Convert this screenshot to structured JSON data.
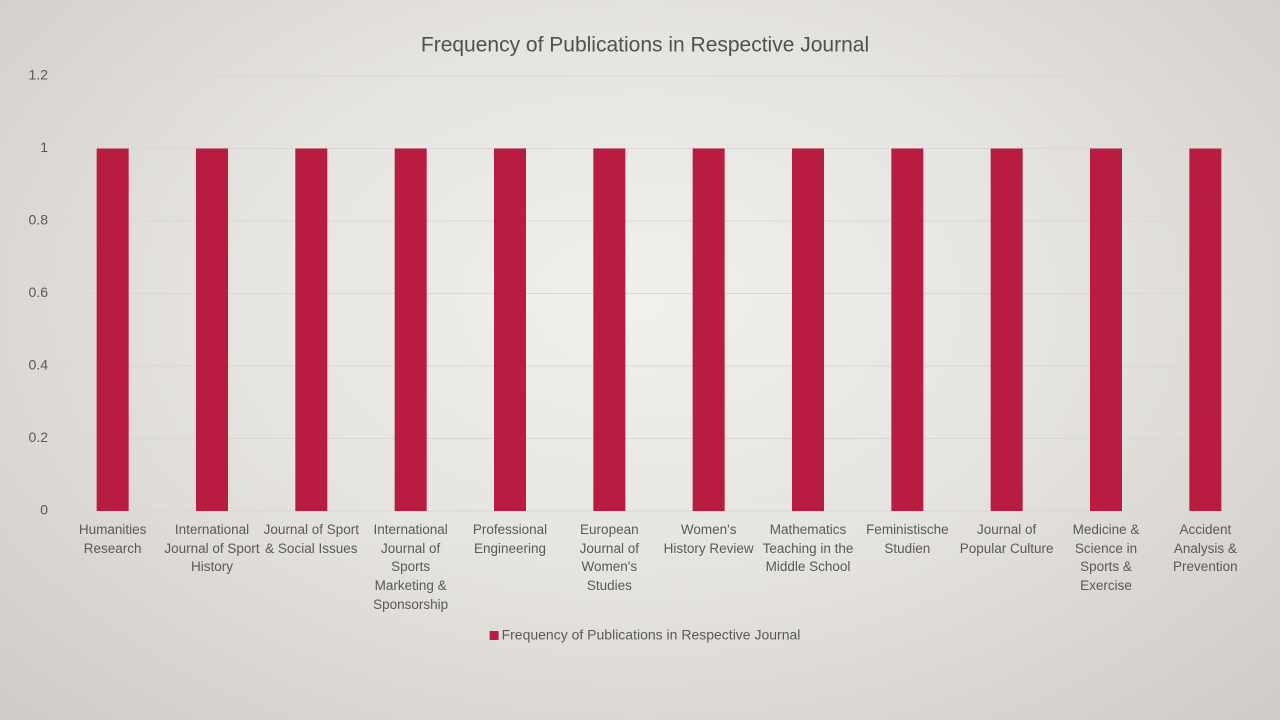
{
  "chart_data": {
    "type": "bar",
    "title": "Frequency of Publications in Respective Journal",
    "categories": [
      "Humanities Research",
      "International Journal of Sport History",
      "Journal of Sport & Social Issues",
      "International Journal of Sports Marketing & Sponsorship",
      "Professional Engineering",
      "European Journal of Women's Studies",
      "Women's History Review",
      "Mathematics Teaching in the Middle School",
      "Feministische Studien",
      "Journal of Popular Culture",
      "Medicine & Science in Sports & Exercise",
      "Accident Analysis & Prevention"
    ],
    "series": [
      {
        "name": "Frequency of Publications in Respective Journal",
        "color": "#b91c41",
        "values": [
          1,
          1,
          1,
          1,
          1,
          1,
          1,
          1,
          1,
          1,
          1,
          1
        ]
      }
    ],
    "ylim": [
      0,
      1.2
    ],
    "yticks": [
      0,
      0.2,
      0.4,
      0.6,
      0.8,
      1,
      1.2
    ],
    "grid": true,
    "legend": "bottom"
  }
}
